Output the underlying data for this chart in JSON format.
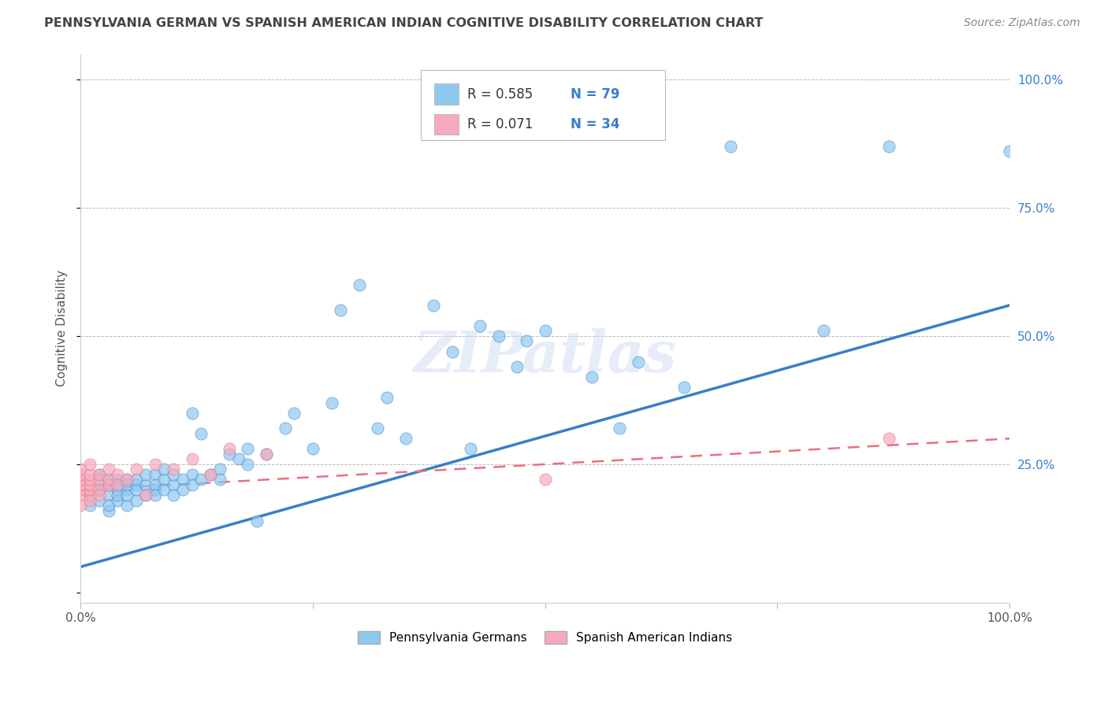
{
  "title": "PENNSYLVANIA GERMAN VS SPANISH AMERICAN INDIAN COGNITIVE DISABILITY CORRELATION CHART",
  "source": "Source: ZipAtlas.com",
  "ylabel": "Cognitive Disability",
  "xlim": [
    0.0,
    1.0
  ],
  "ylim": [
    -0.02,
    1.05
  ],
  "R_blue": 0.585,
  "N_blue": 79,
  "R_pink": 0.071,
  "N_pink": 34,
  "blue_color": "#8FC8F0",
  "pink_color": "#F5AABE",
  "blue_line_color": "#3A7EC6",
  "pink_line_color": "#E8707A",
  "legend_label_blue": "Pennsylvania Germans",
  "legend_label_pink": "Spanish American Indians",
  "title_color": "#444444",
  "source_color": "#888888",
  "grid_color": "#BBBBBB",
  "blue_scatter_x": [
    0.01,
    0.01,
    0.02,
    0.02,
    0.02,
    0.02,
    0.03,
    0.03,
    0.03,
    0.03,
    0.03,
    0.04,
    0.04,
    0.04,
    0.04,
    0.04,
    0.05,
    0.05,
    0.05,
    0.05,
    0.05,
    0.06,
    0.06,
    0.06,
    0.06,
    0.07,
    0.07,
    0.07,
    0.08,
    0.08,
    0.08,
    0.08,
    0.09,
    0.09,
    0.09,
    0.1,
    0.1,
    0.1,
    0.11,
    0.11,
    0.12,
    0.12,
    0.12,
    0.13,
    0.13,
    0.14,
    0.15,
    0.15,
    0.16,
    0.17,
    0.18,
    0.18,
    0.19,
    0.2,
    0.22,
    0.23,
    0.25,
    0.27,
    0.28,
    0.3,
    0.32,
    0.33,
    0.35,
    0.38,
    0.4,
    0.42,
    0.43,
    0.45,
    0.47,
    0.48,
    0.5,
    0.55,
    0.58,
    0.6,
    0.65,
    0.7,
    0.8,
    0.87,
    1.0
  ],
  "blue_scatter_y": [
    0.17,
    0.19,
    0.18,
    0.2,
    0.21,
    0.23,
    0.16,
    0.19,
    0.21,
    0.22,
    0.17,
    0.18,
    0.2,
    0.22,
    0.19,
    0.21,
    0.17,
    0.2,
    0.22,
    0.19,
    0.21,
    0.18,
    0.21,
    0.2,
    0.22,
    0.21,
    0.23,
    0.19,
    0.2,
    0.23,
    0.21,
    0.19,
    0.22,
    0.24,
    0.2,
    0.21,
    0.23,
    0.19,
    0.22,
    0.2,
    0.35,
    0.23,
    0.21,
    0.31,
    0.22,
    0.23,
    0.24,
    0.22,
    0.27,
    0.26,
    0.28,
    0.25,
    0.14,
    0.27,
    0.32,
    0.35,
    0.28,
    0.37,
    0.55,
    0.6,
    0.32,
    0.38,
    0.3,
    0.56,
    0.47,
    0.28,
    0.52,
    0.5,
    0.44,
    0.49,
    0.51,
    0.42,
    0.32,
    0.45,
    0.4,
    0.87,
    0.51,
    0.87,
    0.86
  ],
  "pink_scatter_x": [
    0.0,
    0.0,
    0.0,
    0.0,
    0.0,
    0.0,
    0.0,
    0.01,
    0.01,
    0.01,
    0.01,
    0.01,
    0.01,
    0.01,
    0.02,
    0.02,
    0.02,
    0.02,
    0.03,
    0.03,
    0.03,
    0.04,
    0.04,
    0.05,
    0.06,
    0.07,
    0.08,
    0.1,
    0.12,
    0.14,
    0.16,
    0.2,
    0.5,
    0.87
  ],
  "pink_scatter_y": [
    0.19,
    0.2,
    0.21,
    0.22,
    0.23,
    0.24,
    0.17,
    0.19,
    0.2,
    0.21,
    0.22,
    0.23,
    0.18,
    0.25,
    0.2,
    0.22,
    0.19,
    0.23,
    0.21,
    0.22,
    0.24,
    0.23,
    0.21,
    0.22,
    0.24,
    0.19,
    0.25,
    0.24,
    0.26,
    0.23,
    0.28,
    0.27,
    0.22,
    0.3
  ],
  "blue_trend_x": [
    0.0,
    1.0
  ],
  "blue_trend_y": [
    0.05,
    0.56
  ],
  "pink_trend_x": [
    0.0,
    1.0
  ],
  "pink_trend_y": [
    0.2,
    0.3
  ],
  "watermark": "ZIPatlas"
}
